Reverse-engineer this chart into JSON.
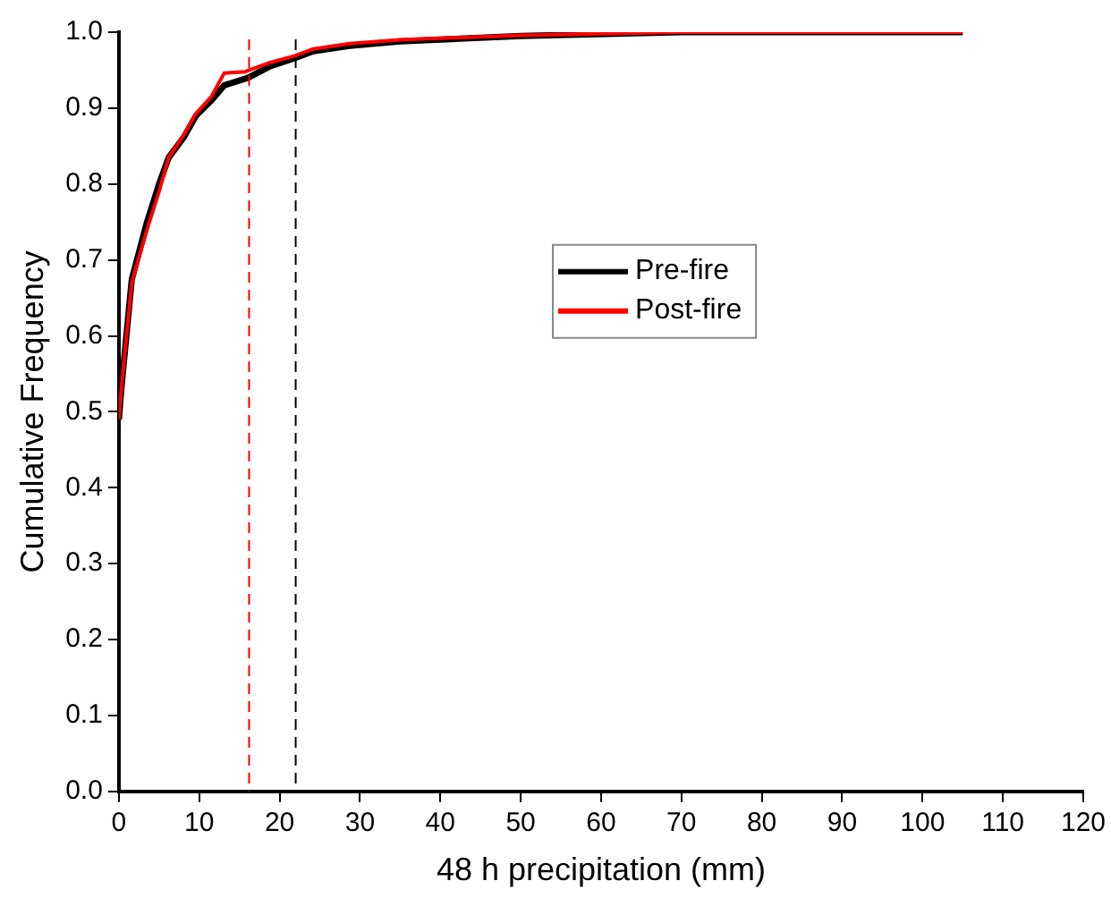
{
  "chart_data": {
    "type": "line",
    "xlabel": "48 h precipitation (mm)",
    "ylabel": "Cumulative Frequency",
    "xlim": [
      0,
      120
    ],
    "xticks": [
      0,
      10,
      20,
      30,
      40,
      50,
      60,
      70,
      80,
      90,
      100,
      110,
      120
    ],
    "ylim": [
      0,
      1
    ],
    "yticks": [
      {
        "value": 0,
        "label": "0.0"
      },
      0.1,
      0.2,
      0.3,
      0.4,
      0.5,
      0.6,
      0.7,
      0.8,
      0.9,
      {
        "value": 1,
        "label": "1.0"
      }
    ],
    "legend": "right",
    "grid": false,
    "marker": "none",
    "series": [
      {
        "name": "Pre-fire",
        "color": "#000000",
        "x": [
          0,
          0.3,
          1.6,
          3.5,
          5.0,
          6.2,
          8.1,
          9.6,
          11.5,
          13.1,
          16.1,
          18.8,
          21.9,
          24.2,
          28.7,
          35,
          50,
          70,
          105
        ],
        "values": [
          0.49,
          0.53,
          0.674,
          0.75,
          0.8,
          0.835,
          0.862,
          0.89,
          0.91,
          0.93,
          0.94,
          0.955,
          0.966,
          0.975,
          0.982,
          0.988,
          0.995,
          1.0,
          1.0
        ]
      },
      {
        "name": "Post-fire",
        "color": "#ff0000",
        "x": [
          0,
          0.3,
          1.6,
          3.5,
          5.0,
          6.2,
          8.1,
          9.6,
          11.5,
          13.1,
          15.7,
          18.8,
          21.9,
          24.2,
          28.7,
          35,
          50,
          70,
          105
        ],
        "values": [
          0.49,
          0.53,
          0.67,
          0.74,
          0.79,
          0.835,
          0.865,
          0.893,
          0.915,
          0.946,
          0.948,
          0.96,
          0.969,
          0.978,
          0.985,
          0.99,
          0.996,
          1.0,
          1.0
        ]
      }
    ],
    "ref_lines": [
      {
        "axis": "x",
        "value": 16.2,
        "color": "#ff0000",
        "line_style": "dashed"
      },
      {
        "axis": "x",
        "value": 22,
        "color": "#000000",
        "line_style": "dashed"
      }
    ]
  }
}
